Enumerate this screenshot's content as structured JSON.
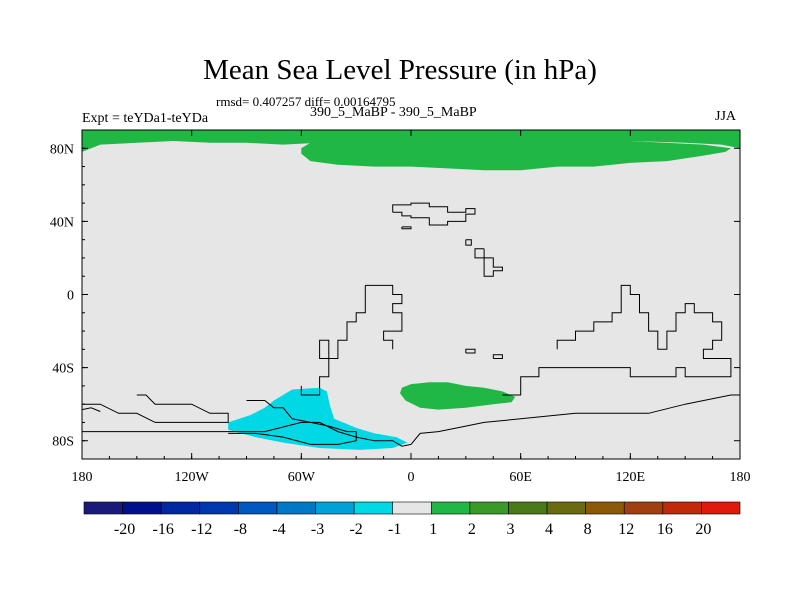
{
  "header": {
    "stats": "rmsd= 0.407257 diff= 0.00164795",
    "left_label": "Expt = teYDa1-teYDa",
    "center_label": "390_5_MaBP - 390_5_MaBP",
    "right_label": "JJA"
  },
  "chart_data": {
    "type": "contour-map",
    "title": "Mean Sea Level Pressure (in hPa)",
    "projection": "cylindrical-equidistant",
    "xlim": [
      -180,
      180
    ],
    "ylim": [
      -90,
      90
    ],
    "x_ticks": [
      {
        "value": -180,
        "label": "180"
      },
      {
        "value": -120,
        "label": "120W"
      },
      {
        "value": -60,
        "label": "60W"
      },
      {
        "value": 0,
        "label": "0"
      },
      {
        "value": 60,
        "label": "60E"
      },
      {
        "value": 120,
        "label": "120E"
      },
      {
        "value": 180,
        "label": "180"
      }
    ],
    "y_ticks": [
      {
        "value": 80,
        "label": "80N"
      },
      {
        "value": 40,
        "label": "40N"
      },
      {
        "value": 0,
        "label": "0"
      },
      {
        "value": -40,
        "label": "40S"
      },
      {
        "value": -80,
        "label": "80S"
      }
    ],
    "background_class_color": "#e6e6e6",
    "regions": [
      {
        "name": "arctic-positive-anomaly",
        "range": "1 to 2",
        "color": "#21b744",
        "lonlat": [
          [
            -180,
            78
          ],
          [
            -170,
            82
          ],
          [
            -130,
            84
          ],
          [
            -110,
            83
          ],
          [
            -90,
            83
          ],
          [
            -70,
            82
          ],
          [
            -50,
            83
          ],
          [
            -30,
            84
          ],
          [
            0,
            84
          ],
          [
            60,
            84
          ],
          [
            120,
            84
          ],
          [
            150,
            83
          ],
          [
            170,
            82
          ],
          [
            180,
            80
          ],
          [
            180,
            90
          ],
          [
            -180,
            90
          ]
        ]
      },
      {
        "name": "arctic-positive-anomaly",
        "range": "1 to 2",
        "color": "#21b744",
        "lonlat": [
          [
            -65,
            84
          ],
          [
            -55,
            83
          ],
          [
            -60,
            80
          ],
          [
            -60,
            77
          ],
          [
            -55,
            73
          ],
          [
            -40,
            71
          ],
          [
            -20,
            70
          ],
          [
            0,
            70
          ],
          [
            20,
            69
          ],
          [
            40,
            68
          ],
          [
            60,
            68
          ],
          [
            80,
            70
          ],
          [
            100,
            70
          ],
          [
            120,
            72
          ],
          [
            140,
            73
          ],
          [
            160,
            76
          ],
          [
            172,
            78
          ],
          [
            175,
            80
          ],
          [
            160,
            82
          ],
          [
            120,
            84
          ],
          [
            60,
            84
          ],
          [
            0,
            85
          ]
        ]
      },
      {
        "name": "southern-positive-anomaly",
        "range": "1 to 2",
        "color": "#21b744",
        "lonlat": [
          [
            -5,
            -51
          ],
          [
            0,
            -49
          ],
          [
            10,
            -48
          ],
          [
            20,
            -48
          ],
          [
            30,
            -50
          ],
          [
            40,
            -51
          ],
          [
            50,
            -53
          ],
          [
            57,
            -56
          ],
          [
            55,
            -59
          ],
          [
            45,
            -60
          ],
          [
            30,
            -62
          ],
          [
            15,
            -63
          ],
          [
            5,
            -62
          ],
          [
            -3,
            -58
          ],
          [
            -6,
            -54
          ]
        ]
      },
      {
        "name": "antarctic-negative-anomaly",
        "range": "-2 to -1",
        "color": "#00d8e6",
        "lonlat": [
          [
            -75,
            -58
          ],
          [
            -65,
            -52
          ],
          [
            -50,
            -51
          ],
          [
            -46,
            -53
          ],
          [
            -45,
            -58
          ],
          [
            -44,
            -62
          ],
          [
            -42,
            -68
          ],
          [
            -30,
            -73
          ],
          [
            -20,
            -76
          ],
          [
            -8,
            -78
          ],
          [
            -2,
            -81
          ],
          [
            -10,
            -84
          ],
          [
            -28,
            -85
          ],
          [
            -50,
            -84
          ],
          [
            -70,
            -81
          ],
          [
            -85,
            -78
          ],
          [
            -100,
            -74
          ],
          [
            -100,
            -70
          ],
          [
            -88,
            -66
          ],
          [
            -80,
            -62
          ]
        ]
      }
    ],
    "coastlines": [
      [
        [
          -10,
          45
        ],
        [
          -10,
          49
        ],
        [
          0,
          49
        ],
        [
          0,
          50
        ],
        [
          10,
          50
        ],
        [
          10,
          48
        ],
        [
          20,
          48
        ],
        [
          20,
          45
        ],
        [
          30,
          45
        ],
        [
          30,
          47
        ],
        [
          35,
          47
        ],
        [
          35,
          44
        ],
        [
          30,
          44
        ],
        [
          30,
          40
        ],
        [
          20,
          40
        ],
        [
          20,
          38
        ],
        [
          10,
          38
        ],
        [
          10,
          42
        ],
        [
          0,
          42
        ],
        [
          0,
          43
        ],
        [
          -5,
          43
        ],
        [
          -5,
          45
        ],
        [
          -10,
          45
        ]
      ],
      [
        [
          -5,
          37
        ],
        [
          -5,
          36
        ],
        [
          0,
          36
        ],
        [
          0,
          37
        ],
        [
          -5,
          37
        ]
      ],
      [
        [
          30,
          30
        ],
        [
          30,
          27
        ],
        [
          33,
          27
        ],
        [
          33,
          30
        ],
        [
          30,
          30
        ]
      ],
      [
        [
          40,
          25
        ],
        [
          40,
          20
        ],
        [
          45,
          20
        ],
        [
          45,
          15
        ],
        [
          50,
          15
        ],
        [
          50,
          13
        ],
        [
          45,
          13
        ],
        [
          45,
          10
        ],
        [
          40,
          10
        ],
        [
          40,
          20
        ],
        [
          35,
          20
        ],
        [
          35,
          25
        ],
        [
          40,
          25
        ]
      ],
      [
        [
          -25,
          5
        ],
        [
          -25,
          -10
        ],
        [
          -30,
          -10
        ],
        [
          -30,
          -15
        ],
        [
          -35,
          -15
        ],
        [
          -35,
          -25
        ],
        [
          -40,
          -25
        ],
        [
          -40,
          -35
        ],
        [
          -45,
          -35
        ],
        [
          -45,
          -45
        ],
        [
          -50,
          -45
        ],
        [
          -50,
          -55
        ],
        [
          -60,
          -55
        ],
        [
          -60,
          -50
        ]
      ],
      [
        [
          -10,
          -30
        ],
        [
          -10,
          -25
        ],
        [
          -15,
          -25
        ],
        [
          -15,
          -20
        ],
        [
          -5,
          -20
        ],
        [
          -5,
          -10
        ],
        [
          -10,
          -10
        ],
        [
          -10,
          -5
        ],
        [
          -5,
          -5
        ],
        [
          -5,
          0
        ],
        [
          -10,
          0
        ],
        [
          -10,
          5
        ],
        [
          -25,
          5
        ]
      ],
      [
        [
          -50,
          -30
        ],
        [
          -50,
          -25
        ],
        [
          -45,
          -25
        ],
        [
          -45,
          -35
        ],
        [
          -50,
          -35
        ],
        [
          -50,
          -30
        ]
      ],
      [
        [
          30,
          -32
        ],
        [
          30,
          -30
        ],
        [
          35,
          -30
        ],
        [
          35,
          -32
        ],
        [
          30,
          -32
        ]
      ],
      [
        [
          45,
          -35
        ],
        [
          45,
          -33
        ],
        [
          50,
          -33
        ],
        [
          50,
          -35
        ],
        [
          45,
          -35
        ]
      ],
      [
        [
          80,
          -30
        ],
        [
          80,
          -25
        ],
        [
          90,
          -25
        ],
        [
          90,
          -20
        ],
        [
          100,
          -20
        ],
        [
          100,
          -15
        ],
        [
          110,
          -15
        ],
        [
          110,
          -10
        ],
        [
          115,
          -10
        ],
        [
          115,
          5
        ],
        [
          120,
          5
        ],
        [
          120,
          0
        ],
        [
          125,
          0
        ],
        [
          125,
          -10
        ],
        [
          130,
          -10
        ],
        [
          130,
          -20
        ],
        [
          135,
          -20
        ],
        [
          135,
          -30
        ],
        [
          140,
          -30
        ],
        [
          140,
          -20
        ],
        [
          145,
          -20
        ],
        [
          145,
          -10
        ],
        [
          150,
          -10
        ],
        [
          150,
          -5
        ],
        [
          155,
          -5
        ],
        [
          155,
          -10
        ],
        [
          165,
          -10
        ],
        [
          165,
          -15
        ],
        [
          170,
          -15
        ],
        [
          170,
          -25
        ],
        [
          165,
          -25
        ],
        [
          165,
          -30
        ],
        [
          160,
          -30
        ],
        [
          160,
          -35
        ],
        [
          175,
          -35
        ],
        [
          175,
          -45
        ],
        [
          150,
          -45
        ],
        [
          150,
          -40
        ],
        [
          145,
          -40
        ],
        [
          145,
          -45
        ],
        [
          120,
          -45
        ],
        [
          120,
          -40
        ],
        [
          70,
          -40
        ],
        [
          70,
          -45
        ],
        [
          60,
          -45
        ],
        [
          60,
          -55
        ],
        [
          50,
          -55
        ]
      ],
      [
        [
          -150,
          -55
        ],
        [
          -145,
          -55
        ],
        [
          -140,
          -60
        ],
        [
          -120,
          -60
        ],
        [
          -110,
          -65
        ],
        [
          -100,
          -65
        ],
        [
          -100,
          -70
        ],
        [
          -140,
          -70
        ],
        [
          -150,
          -65
        ],
        [
          -160,
          -65
        ],
        [
          -170,
          -60
        ],
        [
          -180,
          -60
        ]
      ],
      [
        [
          -180,
          -75
        ],
        [
          -160,
          -75
        ],
        [
          -120,
          -75
        ],
        [
          -100,
          -75
        ],
        [
          -80,
          -75
        ],
        [
          -60,
          -70
        ],
        [
          -50,
          -70
        ],
        [
          -40,
          -75
        ],
        [
          -30,
          -78
        ],
        [
          -20,
          -80
        ],
        [
          -10,
          -80
        ],
        [
          -5,
          -83
        ],
        [
          0,
          -82
        ],
        [
          5,
          -76
        ],
        [
          15,
          -75
        ],
        [
          30,
          -72
        ],
        [
          40,
          -70
        ],
        [
          60,
          -68
        ],
        [
          90,
          -65
        ],
        [
          130,
          -65
        ],
        [
          150,
          -60
        ],
        [
          175,
          -55
        ],
        [
          180,
          -55
        ]
      ],
      [
        [
          -180,
          -63
        ],
        [
          -175,
          -62
        ],
        [
          -170,
          -64
        ]
      ],
      [
        [
          -90,
          -58
        ],
        [
          -80,
          -58
        ],
        [
          -75,
          -62
        ],
        [
          -70,
          -62
        ],
        [
          -65,
          -68
        ],
        [
          -55,
          -70
        ],
        [
          -45,
          -72
        ],
        [
          -35,
          -75
        ],
        [
          -30,
          -75
        ],
        [
          -30,
          -80
        ],
        [
          -40,
          -82
        ],
        [
          -55,
          -82
        ],
        [
          -70,
          -78
        ],
        [
          -85,
          -76
        ],
        [
          -100,
          -76
        ]
      ]
    ],
    "colorbar": {
      "colors": [
        "#1a1a7a",
        "#000f8c",
        "#0028a0",
        "#0038b0",
        "#0058c0",
        "#0078c8",
        "#00a0d8",
        "#00d8e6",
        "#e6e6e6",
        "#21b744",
        "#3a9a28",
        "#4a7a18",
        "#6a6a10",
        "#8a5a08",
        "#a04010",
        "#c02a08",
        "#e01a0a"
      ],
      "labels": [
        "-20",
        "-16",
        "-12",
        "-8",
        "-4",
        "-3",
        "-2",
        "-1",
        "1",
        "2",
        "3",
        "4",
        "8",
        "12",
        "16",
        "20"
      ]
    }
  }
}
